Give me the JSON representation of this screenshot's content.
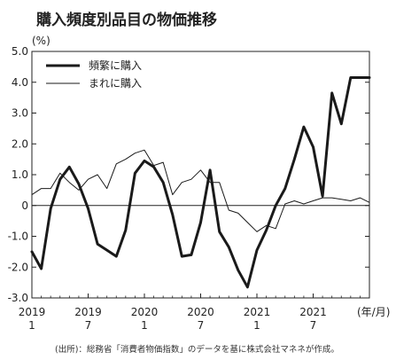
{
  "chart_data": {
    "type": "line",
    "title": "購入頻度別品目の物価推移",
    "ylabel": "(%)",
    "xlabel": "(年/月)",
    "source": "(出所)：総務省「消費者物価指数」のデータを基に株式会社マネネが作成。",
    "ylim": [
      -3.0,
      5.0
    ],
    "yticks": [
      "5.0",
      "4.0",
      "3.0",
      "2.0",
      "1.0",
      "0",
      "-1.0",
      "-2.0",
      "-3.0"
    ],
    "xticks": [
      {
        "year": "2019",
        "month": "1"
      },
      {
        "year": "2019",
        "month": "7"
      },
      {
        "year": "2020",
        "month": "1"
      },
      {
        "year": "2020",
        "month": "7"
      },
      {
        "year": "2021",
        "month": "1"
      },
      {
        "year": "2021",
        "month": "7"
      }
    ],
    "x": [
      "2019/1",
      "2019/2",
      "2019/3",
      "2019/4",
      "2019/5",
      "2019/6",
      "2019/7",
      "2019/8",
      "2019/9",
      "2019/10",
      "2019/11",
      "2019/12",
      "2020/1",
      "2020/2",
      "2020/3",
      "2020/4",
      "2020/5",
      "2020/6",
      "2020/7",
      "2020/8",
      "2020/9",
      "2020/10",
      "2020/11",
      "2020/12",
      "2021/1",
      "2021/2",
      "2021/3",
      "2021/4",
      "2021/5",
      "2021/6",
      "2021/7",
      "2021/8",
      "2021/9",
      "2021/10",
      "2021/11",
      "2021/12",
      "2022/1"
    ],
    "legend_position": "top-left",
    "series": [
      {
        "name": "頻繁に購入",
        "color": "#1a1a1a",
        "style": "thick",
        "values": [
          -1.5,
          -2.05,
          -0.1,
          0.85,
          1.25,
          0.7,
          -0.1,
          -1.25,
          -1.45,
          -1.65,
          -0.8,
          1.05,
          1.45,
          1.25,
          0.75,
          -0.3,
          -1.65,
          -1.6,
          -0.55,
          1.15,
          -0.85,
          -1.35,
          -2.1,
          -2.65,
          -1.45,
          -0.8,
          0.0,
          0.55,
          1.5,
          2.55,
          1.9,
          0.3,
          3.65,
          2.65,
          4.15,
          4.15,
          4.15
        ]
      },
      {
        "name": "まれに購入",
        "color": "#1a1a1a",
        "style": "thin",
        "values": [
          0.35,
          0.55,
          0.55,
          1.05,
          0.75,
          0.5,
          0.85,
          1.0,
          0.55,
          1.35,
          1.5,
          1.7,
          1.8,
          1.3,
          1.4,
          0.35,
          0.75,
          0.85,
          1.15,
          0.75,
          0.75,
          -0.15,
          -0.25,
          -0.55,
          -0.85,
          -0.65,
          -0.75,
          0.05,
          0.15,
          0.05,
          0.15,
          0.25,
          0.25,
          0.2,
          0.15,
          0.25,
          0.1
        ]
      }
    ]
  }
}
